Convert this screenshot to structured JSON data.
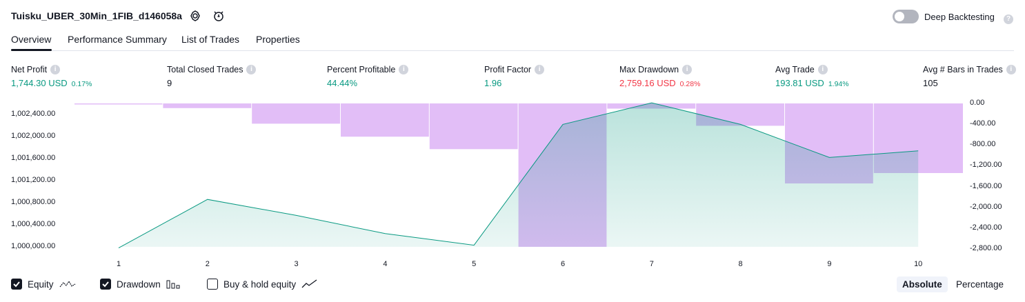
{
  "header": {
    "strategy_name": "Tuisku_UBER_30Min_1FIB_d146058a",
    "deep_backtesting_label": "Deep Backtesting",
    "deep_backtesting_enabled": false
  },
  "tabs": [
    {
      "label": "Overview",
      "active": true
    },
    {
      "label": "Performance Summary",
      "active": false
    },
    {
      "label": "List of Trades",
      "active": false
    },
    {
      "label": "Properties",
      "active": false
    }
  ],
  "metrics": [
    {
      "label": "Net Profit",
      "value": "1,744.30 USD",
      "pct": "0.17%",
      "color": "#089981"
    },
    {
      "label": "Total Closed Trades",
      "value": "9",
      "pct": "",
      "color": "#131722"
    },
    {
      "label": "Percent Profitable",
      "value": "44.44%",
      "pct": "",
      "color": "#089981"
    },
    {
      "label": "Profit Factor",
      "value": "1.96",
      "pct": "",
      "color": "#089981"
    },
    {
      "label": "Max Drawdown",
      "value": "2,759.16 USD",
      "pct": "0.28%",
      "color": "#f23645"
    },
    {
      "label": "Avg Trade",
      "value": "193.81 USD",
      "pct": "1.94%",
      "color": "#089981"
    },
    {
      "label": "Avg # Bars in Trades",
      "value": "105",
      "pct": "",
      "color": "#131722"
    }
  ],
  "chart_data": {
    "type": "line",
    "x": [
      1,
      2,
      3,
      4,
      5,
      6,
      7,
      8,
      9,
      10
    ],
    "left_axis_ticks": [
      "1,002,400.00",
      "1,002,000.00",
      "1,001,600.00",
      "1,001,200.00",
      "1,000,800.00",
      "1,000,400.00",
      "1,000,000.00"
    ],
    "right_axis_ticks": [
      "0.00",
      "-400.00",
      "-800.00",
      "-1,200.00",
      "-1,600.00",
      "-2,000.00",
      "-2,400.00",
      "-2,800.00"
    ],
    "left_ylim": [
      1000000,
      1002400
    ],
    "right_ylim": [
      -2800,
      0
    ],
    "series": [
      {
        "name": "Equity",
        "values": [
          999980,
          1000860,
          1000570,
          1000240,
          1000030,
          1002220,
          1002610,
          1002220,
          1001620,
          1001740
        ],
        "color": "#089981"
      },
      {
        "name": "Drawdown",
        "values": [
          0,
          -90,
          -390,
          -640,
          -880,
          -2760,
          -100,
          -430,
          -1540,
          -1340
        ],
        "color": "#ce93f2"
      }
    ],
    "grid": false
  },
  "legend": [
    {
      "label": "Equity",
      "checked": true
    },
    {
      "label": "Drawdown",
      "checked": true
    },
    {
      "label": "Buy & hold equity",
      "checked": false
    }
  ],
  "view_modes": [
    {
      "label": "Absolute",
      "active": true
    },
    {
      "label": "Percentage",
      "active": false
    }
  ]
}
